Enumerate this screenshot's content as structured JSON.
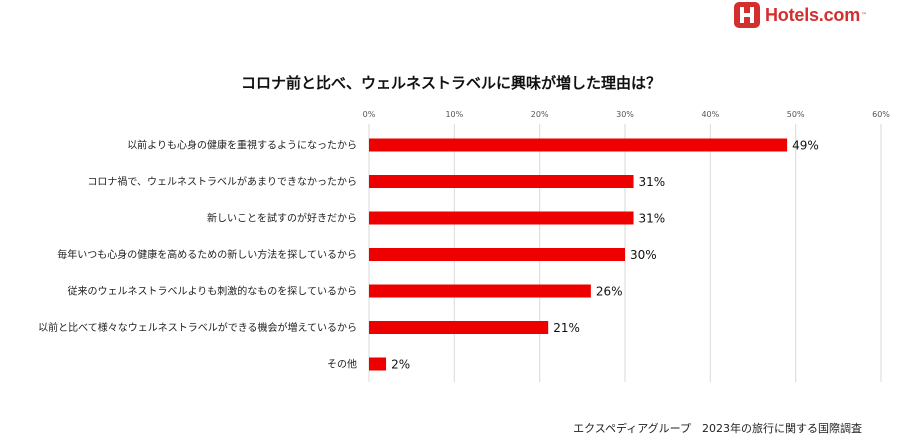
{
  "logo": {
    "text": "Hotels.com",
    "tm": "™",
    "color": "#d32f2f"
  },
  "source": "エクスペディアグループ　2023年の旅行に関する国際調査",
  "chart_data": {
    "type": "bar",
    "orientation": "horizontal",
    "title": "コロナ前と比べ、ウェルネストラベルに興味が増した理由は？",
    "categories": [
      "以前よりも心身の健康を重視するようになったから",
      "コロナ禍で、ウェルネストラベルがあまりできなかったから",
      "新しいことを試すのが好きだから",
      "毎年いつも心身の健康を高めるための新しい方法を探しているから",
      "従来のウェルネストラベルよりも刺激的なものを探しているから",
      "以前と比べて様々なウェルネストラベルができる機会が増えているから",
      "その他"
    ],
    "values": [
      49,
      31,
      31,
      30,
      26,
      21,
      2
    ],
    "value_labels": [
      "49%",
      "31%",
      "31%",
      "30%",
      "26%",
      "21%",
      "2%"
    ],
    "xlim": [
      0,
      60
    ],
    "ticks": [
      0,
      10,
      20,
      30,
      40,
      50,
      60
    ],
    "tick_labels": [
      "0%",
      "10%",
      "20%",
      "30%",
      "40%",
      "50%",
      "60%"
    ],
    "axis_position": "top",
    "grid": true,
    "bar_color": "#ee0000"
  }
}
